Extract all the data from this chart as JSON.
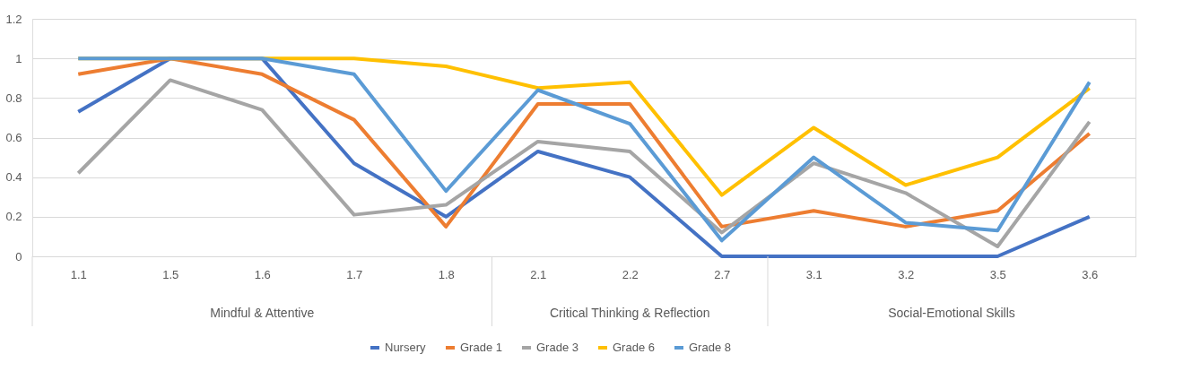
{
  "chart_data": {
    "type": "line",
    "categories": [
      "1.1",
      "1.5",
      "1.6",
      "1.7",
      "1.8",
      "2.1",
      "2.2",
      "2.7",
      "3.1",
      "3.2",
      "3.5",
      "3.6"
    ],
    "series": [
      {
        "name": "Nursery",
        "color": "#4472c4",
        "values": [
          0.73,
          1,
          1,
          0.47,
          0.2,
          0.53,
          0.4,
          0,
          0,
          0,
          0,
          0.2
        ]
      },
      {
        "name": "Grade 1",
        "color": "#ed7d31",
        "values": [
          0.92,
          1,
          0.92,
          0.69,
          0.15,
          0.77,
          0.77,
          0.15,
          0.23,
          0.15,
          0.23,
          0.62
        ]
      },
      {
        "name": "Grade 3",
        "color": "#a5a5a5",
        "values": [
          0.42,
          0.89,
          0.74,
          0.21,
          0.26,
          0.58,
          0.53,
          0.12,
          0.47,
          0.32,
          0.05,
          0.68
        ]
      },
      {
        "name": "Grade 6",
        "color": "#ffc000",
        "values": [
          1,
          1,
          1,
          1,
          0.96,
          0.85,
          0.88,
          0.31,
          0.65,
          0.36,
          0.5,
          0.85
        ]
      },
      {
        "name": "Grade 8",
        "color": "#5b9bd5",
        "values": [
          1,
          1,
          1,
          0.92,
          0.33,
          0.84,
          0.67,
          0.08,
          0.5,
          0.17,
          0.13,
          0.88
        ]
      }
    ],
    "annotations": [
      "Mindful & Attentive",
      "Critical Thinking & Reflection",
      "Social-Emotional Skills"
    ],
    "ylim": [
      0,
      1.2
    ],
    "yticks": [
      0,
      0.2,
      0.4,
      0.6,
      0.8,
      1,
      1.2
    ],
    "grid": "y",
    "legend": "bottom",
    "marker": "none",
    "line_style": "solid"
  }
}
